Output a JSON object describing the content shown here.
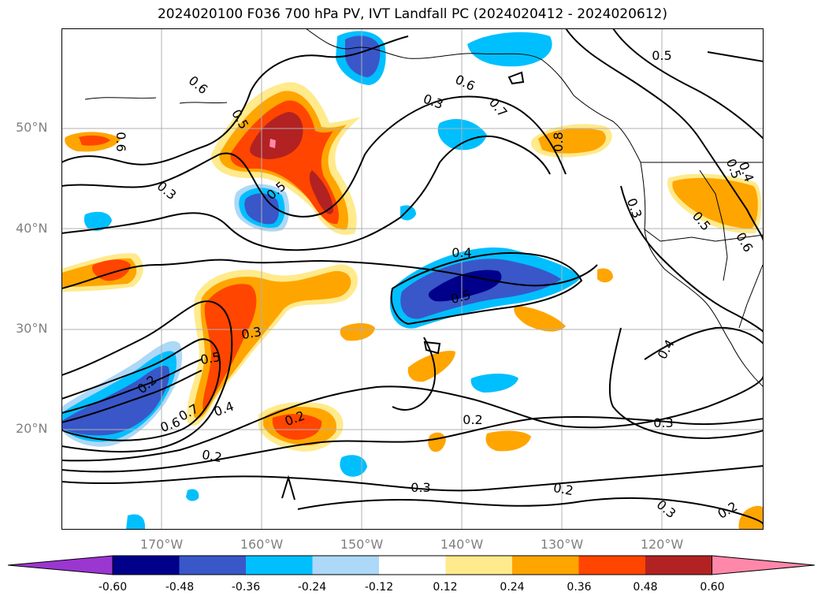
{
  "title": "2024020100 F036 700 hPa PV, IVT Landfall PC (2024020412 - 2024020612)",
  "map": {
    "extent": {
      "lon": [
        -180,
        -110
      ],
      "lat": [
        10,
        60
      ]
    },
    "lat_labels": [
      "50°N",
      "40°N",
      "30°N",
      "20°N"
    ],
    "lon_labels": [
      "170°W",
      "160°W",
      "150°W",
      "140°W",
      "130°W",
      "120°W"
    ],
    "contour_labels": [
      "0.6",
      "0.5",
      "0.6",
      "0.3",
      "0.5",
      "0.3",
      "0.6",
      "0.7",
      "0.5",
      "0.8",
      "0.3",
      "0.5",
      "0.4",
      "0.5",
      "0.4",
      "0.3",
      "0.5",
      "0.6",
      "0.4",
      "0.5",
      "0.2",
      "0.7",
      "0.4",
      "0.6",
      "0.2",
      "0.2",
      "0.2",
      "0.3",
      "0.2",
      "0.3",
      "0.3",
      "0.2"
    ],
    "colors": {
      "grid": "#b0b0b0",
      "contour": "#000000",
      "coast": "#000000"
    }
  },
  "colorbar": {
    "levels": [
      "-0.60",
      "-0.48",
      "-0.36",
      "-0.24",
      "-0.12",
      "0.12",
      "0.24",
      "0.36",
      "0.48",
      "0.60"
    ],
    "colors": [
      "#9b36d1",
      "#00008b",
      "#3957c8",
      "#00bfff",
      "#add8f7",
      "#ffffff",
      "#ffea8c",
      "#ffa500",
      "#ff4500",
      "#b22222",
      "#ff88aa"
    ]
  }
}
